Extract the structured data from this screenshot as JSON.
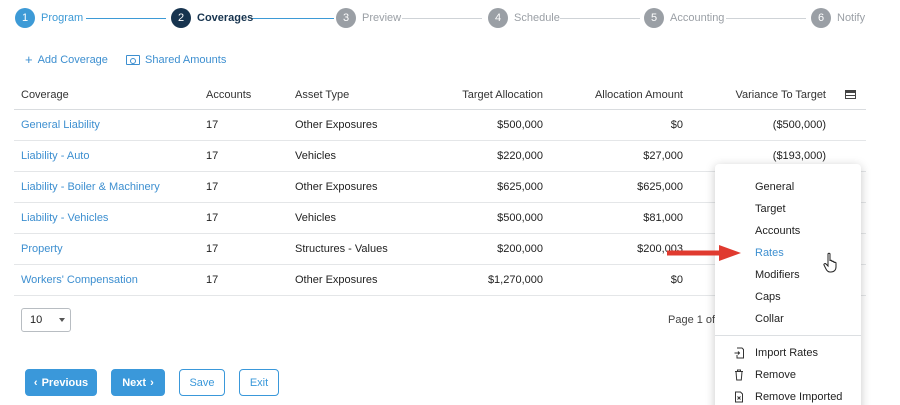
{
  "stepper": {
    "steps": [
      {
        "num": "1",
        "label": "Program"
      },
      {
        "num": "2",
        "label": "Coverages"
      },
      {
        "num": "3",
        "label": "Preview"
      },
      {
        "num": "4",
        "label": "Schedule"
      },
      {
        "num": "5",
        "label": "Accounting"
      },
      {
        "num": "6",
        "label": "Notify"
      }
    ]
  },
  "toolbar": {
    "add_coverage": "Add Coverage",
    "shared_amounts": "Shared Amounts"
  },
  "table": {
    "headers": {
      "coverage": "Coverage",
      "accounts": "Accounts",
      "asset_type": "Asset Type",
      "target_allocation": "Target Allocation",
      "allocation_amount": "Allocation Amount",
      "variance_to_target": "Variance To Target"
    },
    "rows": [
      {
        "coverage": "General Liability",
        "accounts": "17",
        "asset_type": "Other Exposures",
        "target": "$500,000",
        "allocation": "$0",
        "variance": "($500,000)"
      },
      {
        "coverage": "Liability - Auto",
        "accounts": "17",
        "asset_type": "Vehicles",
        "target": "$220,000",
        "allocation": "$27,000",
        "variance": "($193,000)"
      },
      {
        "coverage": "Liability - Boiler & Machinery",
        "accounts": "17",
        "asset_type": "Other Exposures",
        "target": "$625,000",
        "allocation": "$625,000",
        "variance": ""
      },
      {
        "coverage": "Liability - Vehicles",
        "accounts": "17",
        "asset_type": "Vehicles",
        "target": "$500,000",
        "allocation": "$81,000",
        "variance": ""
      },
      {
        "coverage": "Property",
        "accounts": "17",
        "asset_type": "Structures - Values",
        "target": "$200,000",
        "allocation": "$200,003",
        "variance": ""
      },
      {
        "coverage": "Workers' Compensation",
        "accounts": "17",
        "asset_type": "Other Exposures",
        "target": "$1,270,000",
        "allocation": "$0",
        "variance": ""
      }
    ]
  },
  "pagination": {
    "page_size": "10",
    "page_info": "Page 1 of 1"
  },
  "buttons": {
    "previous": "Previous",
    "next": "Next",
    "save": "Save",
    "exit": "Exit"
  },
  "menu": {
    "items": [
      "General",
      "Target",
      "Accounts",
      "Rates",
      "Modifiers",
      "Caps",
      "Collar"
    ],
    "actions": [
      "Import Rates",
      "Remove",
      "Remove Imported"
    ]
  },
  "colors": {
    "accent": "#3d9ad6",
    "current_step": "#17344f",
    "inactive": "#9a9fa5",
    "arrow": "#e03a2f"
  }
}
